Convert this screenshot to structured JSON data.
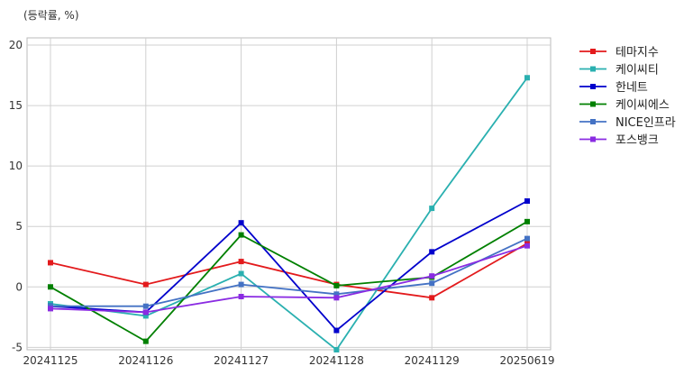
{
  "unit_label": "(등락률, %)",
  "chart_data": {
    "type": "line",
    "x": [
      "20241125",
      "20241126",
      "20241127",
      "20241128",
      "20241129",
      "20250619"
    ],
    "ylim": [
      -5.2,
      20.6
    ],
    "yticks": [
      -5,
      0,
      5,
      10,
      15,
      20
    ],
    "grid": true,
    "legend": "outside-right",
    "series": [
      {
        "name": "테마지수",
        "color": "#e31a1c",
        "values": [
          2.0,
          0.2,
          2.1,
          0.2,
          -0.9,
          3.6
        ]
      },
      {
        "name": "케이씨티",
        "color": "#2ab0b0",
        "values": [
          -1.4,
          -2.4,
          1.1,
          -5.2,
          6.5,
          17.3
        ]
      },
      {
        "name": "한네트",
        "color": "#0000cc",
        "values": [
          -1.6,
          -2.1,
          5.3,
          -3.6,
          2.9,
          7.1
        ]
      },
      {
        "name": "케이씨에스",
        "color": "#008000",
        "values": [
          0.0,
          -4.5,
          4.3,
          0.1,
          0.8,
          5.4
        ]
      },
      {
        "name": "NICE인프라",
        "color": "#4472c4",
        "values": [
          -1.6,
          -1.6,
          0.2,
          -0.6,
          0.3,
          4.0
        ]
      },
      {
        "name": "포스뱅크",
        "color": "#8a2be2",
        "values": [
          -1.8,
          -2.1,
          -0.8,
          -0.9,
          0.9,
          3.4
        ]
      }
    ]
  }
}
